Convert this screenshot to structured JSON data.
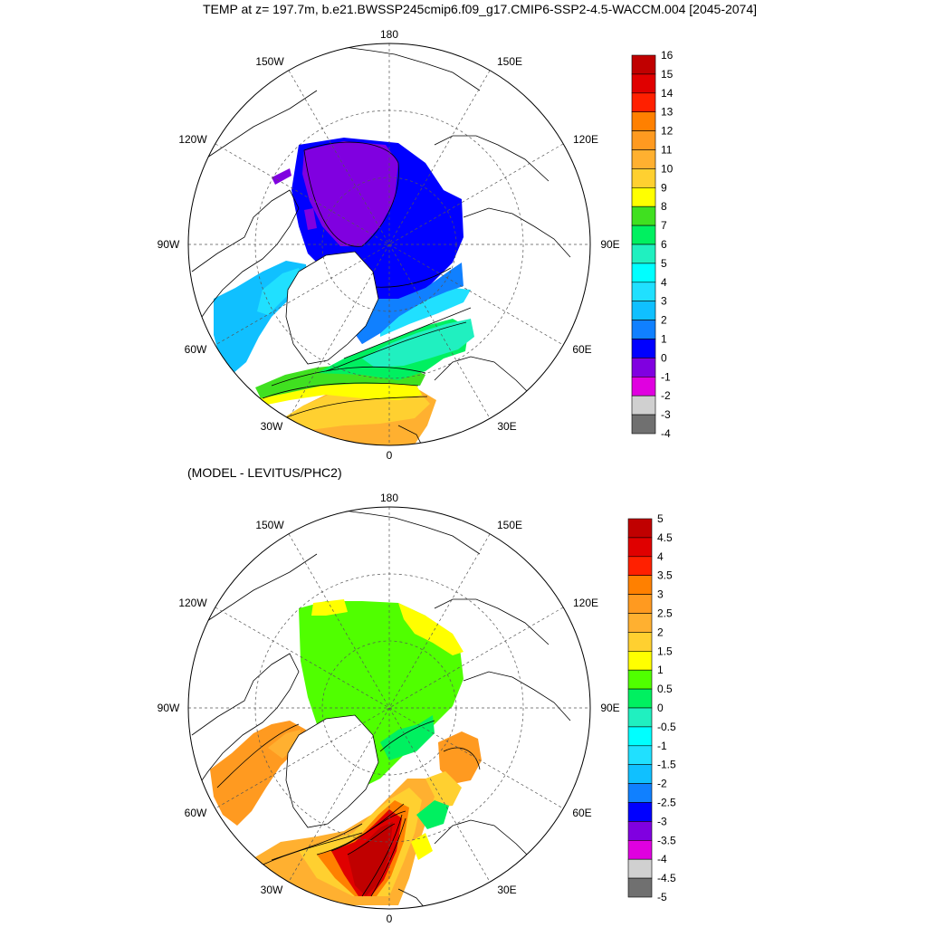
{
  "title": "TEMP at z= 197.7m, b.e21.BWSSP245cmip6.f09_g17.CMIP6-SSP2-4.5-WACCM.004 [2045-2074]",
  "subtitle": "(MODEL - LEVITUS/PHC2)",
  "map_labels": {
    "lon_180": "180",
    "lon_150w": "150W",
    "lon_150e": "150E",
    "lon_120w": "120W",
    "lon_120e": "120E",
    "lon_90w": "90W",
    "lon_90e": "90E",
    "lon_60w": "60W",
    "lon_60e": "60E",
    "lon_30w": "30W",
    "lon_30e": "30E",
    "lon_0": "0"
  },
  "colorbar_top": {
    "labels": [
      "16",
      "15",
      "14",
      "13",
      "12",
      "11",
      "10",
      "9",
      "8",
      "7",
      "6",
      "5",
      "4",
      "3",
      "2",
      "1",
      "0",
      "-1",
      "-2",
      "-3",
      "-4"
    ],
    "colors": [
      "#c00000",
      "#e00000",
      "#ff2000",
      "#ff8000",
      "#ff9a20",
      "#ffb030",
      "#ffd030",
      "#ffff00",
      "#40e020",
      "#00f060",
      "#20f0c0",
      "#00ffff",
      "#20e0ff",
      "#10c0ff",
      "#1080ff",
      "#0000ff",
      "#8000e0",
      "#e000e0",
      "#d0d0d0",
      "#707070"
    ]
  },
  "colorbar_bottom": {
    "labels": [
      "5",
      "4.5",
      "4",
      "3.5",
      "3",
      "2.5",
      "2",
      "1.5",
      "1",
      "0.5",
      "0",
      "-0.5",
      "-1",
      "-1.5",
      "-2",
      "-2.5",
      "-3",
      "-3.5",
      "-4",
      "-4.5",
      "-5"
    ],
    "colors": [
      "#c00000",
      "#e00000",
      "#ff2000",
      "#ff8000",
      "#ff9a20",
      "#ffb030",
      "#ffd030",
      "#ffff00",
      "#50ff00",
      "#00f060",
      "#20f0c0",
      "#00ffff",
      "#20e0ff",
      "#10c0ff",
      "#1080ff",
      "#0000ff",
      "#8000e0",
      "#e000e0",
      "#d0d0d0",
      "#707070"
    ]
  }
}
